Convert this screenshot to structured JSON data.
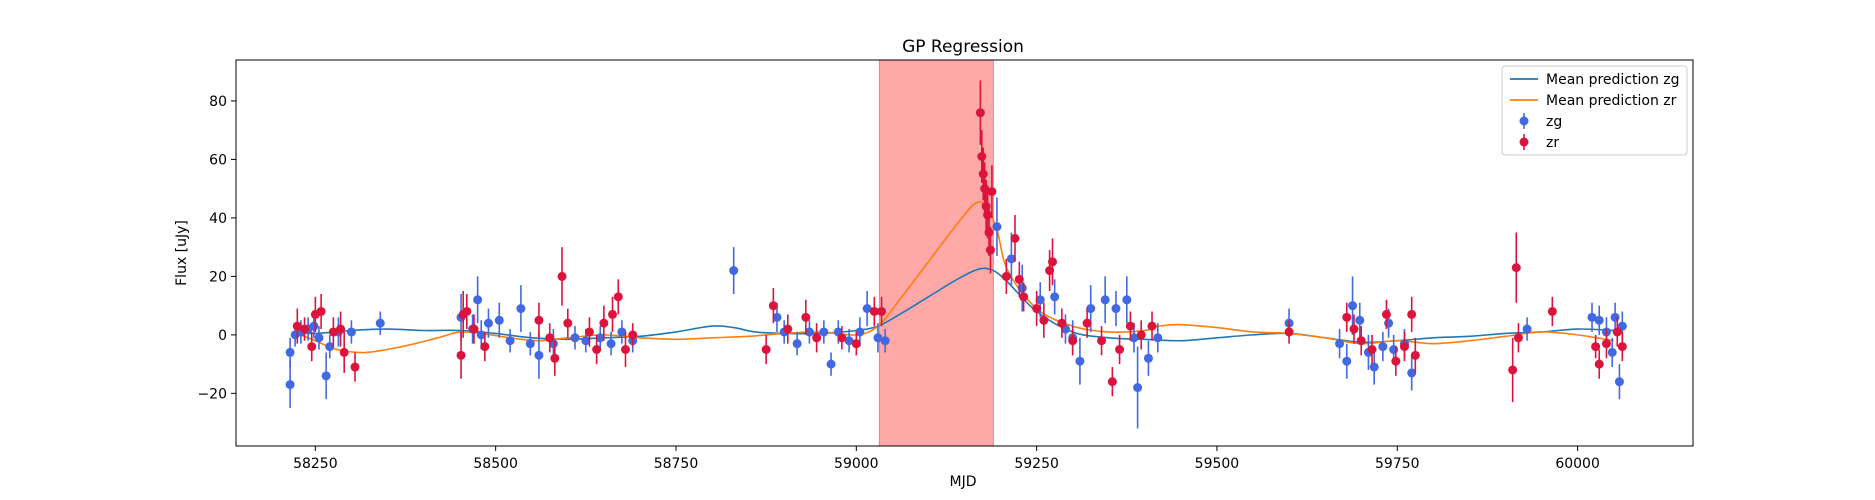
{
  "chart_data": {
    "type": "scatter",
    "title": "GP Regression",
    "xlabel": "MJD",
    "ylabel": "Flux [uJy]",
    "xlim": [
      58140,
      60160
    ],
    "ylim": [
      -38,
      94
    ],
    "xticks": [
      58250,
      58500,
      58750,
      59000,
      59250,
      59500,
      59750,
      60000
    ],
    "yticks": [
      -20,
      0,
      20,
      40,
      60,
      80
    ],
    "grid": false,
    "legend_position": "top-right",
    "shaded_region": {
      "x_start": 59032,
      "x_end": 59190,
      "color": "#ffa8a8"
    },
    "lines": [
      {
        "name": "Mean prediction zg",
        "color": "#1f77b4",
        "x": [
          58220,
          58250,
          58300,
          58350,
          58400,
          58450,
          58500,
          58550,
          58600,
          58650,
          58700,
          58750,
          58800,
          58830,
          58860,
          58900,
          58950,
          59000,
          59030,
          59060,
          59100,
          59140,
          59170,
          59190,
          59210,
          59250,
          59300,
          59350,
          59400,
          59450,
          59500,
          59550,
          59600,
          59650,
          59700,
          59750,
          59800,
          59850,
          59900,
          59950,
          60000,
          60050
        ],
        "y": [
          1,
          0.5,
          1.5,
          2,
          1.5,
          1.5,
          0.5,
          -1,
          -1.5,
          -1,
          -0.5,
          1,
          3,
          2.5,
          1,
          0.5,
          0.5,
          1.5,
          3,
          7,
          13,
          19,
          22.5,
          22,
          18,
          8,
          1,
          -1,
          -1.5,
          -2,
          -1,
          0,
          0.5,
          -1,
          -2.5,
          -2,
          -1,
          -0.5,
          0.5,
          1,
          2,
          1.5
        ]
      },
      {
        "name": "Mean prediction zr",
        "color": "#ff7f0e",
        "x": [
          58220,
          58250,
          58280,
          58320,
          58370,
          58420,
          58450,
          58480,
          58520,
          58560,
          58600,
          58650,
          58700,
          58750,
          58800,
          58850,
          58900,
          58950,
          59000,
          59030,
          59060,
          59100,
          59140,
          59165,
          59180,
          59195,
          59210,
          59250,
          59300,
          59350,
          59400,
          59420,
          59450,
          59500,
          59550,
          59600,
          59650,
          59700,
          59750,
          59800,
          59850,
          59900,
          59950,
          60000,
          60050
        ],
        "y": [
          1,
          -2,
          -5,
          -6,
          -4,
          -1,
          1,
          0.5,
          -1,
          -2,
          -1,
          0,
          -1,
          -1.5,
          -1,
          -0.5,
          0.5,
          1,
          0,
          3,
          12,
          25,
          38,
          45,
          44,
          36,
          22,
          9,
          3,
          1,
          1.5,
          3,
          3.5,
          2.5,
          1,
          0.5,
          -1,
          -3,
          -2,
          -3,
          -2,
          -0.5,
          1,
          0,
          -2
        ]
      }
    ],
    "series": [
      {
        "name": "zg",
        "color": "#4169e1",
        "points": [
          [
            58215,
            -6,
            5
          ],
          [
            58215,
            -17,
            8
          ],
          [
            58222,
            0,
            4
          ],
          [
            58230,
            1,
            4
          ],
          [
            58240,
            2,
            4
          ],
          [
            58248,
            3,
            4
          ],
          [
            58255,
            -1,
            4
          ],
          [
            58265,
            -14,
            8
          ],
          [
            58270,
            -4,
            4
          ],
          [
            58282,
            1,
            5
          ],
          [
            58300,
            1,
            4
          ],
          [
            58340,
            4,
            4
          ],
          [
            58452,
            6,
            8
          ],
          [
            58468,
            2,
            5
          ],
          [
            58475,
            12,
            8
          ],
          [
            58480,
            0,
            5
          ],
          [
            58490,
            4,
            5
          ],
          [
            58505,
            5,
            6
          ],
          [
            58520,
            -2,
            4
          ],
          [
            58535,
            9,
            8
          ],
          [
            58548,
            -3,
            4
          ],
          [
            58560,
            -7,
            8
          ],
          [
            58580,
            -3,
            5
          ],
          [
            58610,
            -1,
            4
          ],
          [
            58625,
            -2,
            4
          ],
          [
            58645,
            -1,
            4
          ],
          [
            58660,
            -3,
            4
          ],
          [
            58675,
            1,
            4
          ],
          [
            58690,
            -2,
            4
          ],
          [
            58830,
            22,
            8
          ],
          [
            58890,
            6,
            5
          ],
          [
            58900,
            1,
            4
          ],
          [
            58918,
            -3,
            4
          ],
          [
            58935,
            1,
            4
          ],
          [
            58955,
            1,
            4
          ],
          [
            58965,
            -10,
            4
          ],
          [
            58975,
            1,
            4
          ],
          [
            58990,
            -2,
            4
          ],
          [
            59005,
            1,
            5
          ],
          [
            59015,
            9,
            6
          ],
          [
            59030,
            -1,
            5
          ],
          [
            59040,
            -2,
            4
          ],
          [
            59195,
            37,
            10
          ],
          [
            59215,
            26,
            9
          ],
          [
            59230,
            16,
            8
          ],
          [
            59255,
            12,
            6
          ],
          [
            59275,
            13,
            6
          ],
          [
            59290,
            2,
            5
          ],
          [
            59300,
            -1,
            6
          ],
          [
            59310,
            -9,
            8
          ],
          [
            59325,
            9,
            8
          ],
          [
            59345,
            12,
            8
          ],
          [
            59360,
            9,
            6
          ],
          [
            59375,
            12,
            8
          ],
          [
            59385,
            -1,
            5
          ],
          [
            59390,
            -18,
            14
          ],
          [
            59405,
            -8,
            6
          ],
          [
            59418,
            -1,
            5
          ],
          [
            59600,
            4,
            5
          ],
          [
            59670,
            -3,
            5
          ],
          [
            59680,
            -9,
            6
          ],
          [
            59688,
            10,
            10
          ],
          [
            59698,
            5,
            6
          ],
          [
            59710,
            -6,
            6
          ],
          [
            59718,
            -11,
            6
          ],
          [
            59730,
            -4,
            5
          ],
          [
            59738,
            4,
            5
          ],
          [
            59745,
            -5,
            5
          ],
          [
            59760,
            -3,
            5
          ],
          [
            59770,
            -13,
            6
          ],
          [
            59930,
            2,
            4
          ],
          [
            60020,
            6,
            5
          ],
          [
            60030,
            5,
            5
          ],
          [
            60040,
            1,
            5
          ],
          [
            60048,
            -6,
            5
          ],
          [
            60052,
            6,
            5
          ],
          [
            60058,
            -16,
            6
          ],
          [
            60062,
            3,
            5
          ]
        ]
      },
      {
        "name": "zr",
        "color": "#dc143c",
        "points": [
          [
            58225,
            3,
            6
          ],
          [
            58235,
            2,
            4
          ],
          [
            58245,
            -4,
            5
          ],
          [
            58250,
            7,
            6
          ],
          [
            58258,
            8,
            6
          ],
          [
            58275,
            1,
            5
          ],
          [
            58285,
            2,
            6
          ],
          [
            58290,
            -6,
            7
          ],
          [
            58305,
            -11,
            5
          ],
          [
            58452,
            -7,
            8
          ],
          [
            58455,
            7,
            8
          ],
          [
            58460,
            8,
            6
          ],
          [
            58470,
            2,
            5
          ],
          [
            58485,
            -4,
            5
          ],
          [
            58560,
            5,
            6
          ],
          [
            58575,
            -1,
            5
          ],
          [
            58582,
            -8,
            6
          ],
          [
            58592,
            20,
            10
          ],
          [
            58600,
            4,
            5
          ],
          [
            58630,
            1,
            5
          ],
          [
            58640,
            -5,
            5
          ],
          [
            58650,
            4,
            6
          ],
          [
            58662,
            7,
            6
          ],
          [
            58670,
            13,
            6
          ],
          [
            58680,
            -5,
            6
          ],
          [
            58690,
            0,
            4
          ],
          [
            58875,
            -5,
            5
          ],
          [
            58885,
            10,
            6
          ],
          [
            58905,
            2,
            5
          ],
          [
            58930,
            6,
            6
          ],
          [
            58945,
            -1,
            5
          ],
          [
            58980,
            -1,
            4
          ],
          [
            59000,
            -3,
            4
          ],
          [
            59025,
            8,
            5
          ],
          [
            59035,
            8,
            5
          ],
          [
            59172,
            76,
            11
          ],
          [
            59174,
            61,
            9
          ],
          [
            59176,
            55,
            9
          ],
          [
            59178,
            50,
            9
          ],
          [
            59180,
            44,
            9
          ],
          [
            59182,
            41,
            8
          ],
          [
            59184,
            35,
            8
          ],
          [
            59186,
            29,
            8
          ],
          [
            59188,
            49,
            9
          ],
          [
            59208,
            20,
            6
          ],
          [
            59220,
            33,
            8
          ],
          [
            59226,
            19,
            6
          ],
          [
            59232,
            13,
            5
          ],
          [
            59250,
            9,
            6
          ],
          [
            59260,
            5,
            6
          ],
          [
            59268,
            22,
            7
          ],
          [
            59272,
            25,
            8
          ],
          [
            59285,
            4,
            5
          ],
          [
            59300,
            -2,
            5
          ],
          [
            59320,
            4,
            5
          ],
          [
            59340,
            -2,
            5
          ],
          [
            59355,
            -16,
            5
          ],
          [
            59365,
            -5,
            5
          ],
          [
            59380,
            3,
            5
          ],
          [
            59395,
            0,
            5
          ],
          [
            59410,
            3,
            5
          ],
          [
            59600,
            1,
            4
          ],
          [
            59680,
            6,
            5
          ],
          [
            59690,
            2,
            5
          ],
          [
            59700,
            -2,
            5
          ],
          [
            59715,
            -5,
            5
          ],
          [
            59735,
            7,
            5
          ],
          [
            59748,
            -9,
            5
          ],
          [
            59760,
            -4,
            5
          ],
          [
            59770,
            7,
            6
          ],
          [
            59775,
            -7,
            6
          ],
          [
            59910,
            -12,
            11
          ],
          [
            59915,
            23,
            12
          ],
          [
            59918,
            -1,
            5
          ],
          [
            59965,
            8,
            5
          ],
          [
            60025,
            -4,
            4
          ],
          [
            60030,
            -10,
            5
          ],
          [
            60040,
            -3,
            5
          ],
          [
            60055,
            1,
            5
          ],
          [
            60062,
            -4,
            5
          ]
        ]
      }
    ],
    "legend": [
      {
        "label": "Mean prediction zg",
        "kind": "line",
        "color": "#1f77b4"
      },
      {
        "label": "Mean prediction zr",
        "kind": "line",
        "color": "#ff7f0e"
      },
      {
        "label": "zg",
        "kind": "errorbar",
        "color": "#4169e1"
      },
      {
        "label": "zr",
        "kind": "errorbar",
        "color": "#dc143c"
      }
    ]
  }
}
